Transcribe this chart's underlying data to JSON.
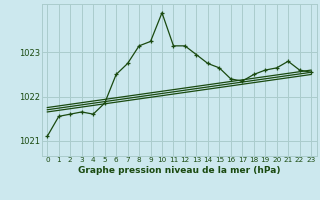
{
  "title": "Graphe pression niveau de la mer (hPa)",
  "bg_color": "#cce8ee",
  "grid_color": "#aacccc",
  "line_color": "#1a4a10",
  "xlim": [
    -0.5,
    23.5
  ],
  "ylim": [
    1020.65,
    1024.1
  ],
  "yticks": [
    1021,
    1022,
    1023
  ],
  "xticks": [
    0,
    1,
    2,
    3,
    4,
    5,
    6,
    7,
    8,
    9,
    10,
    11,
    12,
    13,
    14,
    15,
    16,
    17,
    18,
    19,
    20,
    21,
    22,
    23
  ],
  "main_line": {
    "x": [
      0,
      1,
      2,
      3,
      4,
      5,
      6,
      7,
      8,
      9,
      10,
      11,
      12,
      13,
      14,
      15,
      16,
      17,
      18,
      19,
      20,
      21,
      22,
      23
    ],
    "y": [
      1021.1,
      1021.55,
      1021.6,
      1021.65,
      1021.6,
      1021.85,
      1022.5,
      1022.75,
      1023.15,
      1023.25,
      1023.9,
      1023.15,
      1023.15,
      1022.95,
      1022.75,
      1022.65,
      1022.4,
      1022.35,
      1022.5,
      1022.6,
      1022.65,
      1022.8,
      1022.6,
      1022.55
    ]
  },
  "trend1": {
    "x": [
      0,
      23
    ],
    "y": [
      1021.65,
      1022.5
    ]
  },
  "trend2": {
    "x": [
      0,
      23
    ],
    "y": [
      1021.7,
      1022.55
    ]
  },
  "trend3": {
    "x": [
      0,
      23
    ],
    "y": [
      1021.75,
      1022.6
    ]
  }
}
